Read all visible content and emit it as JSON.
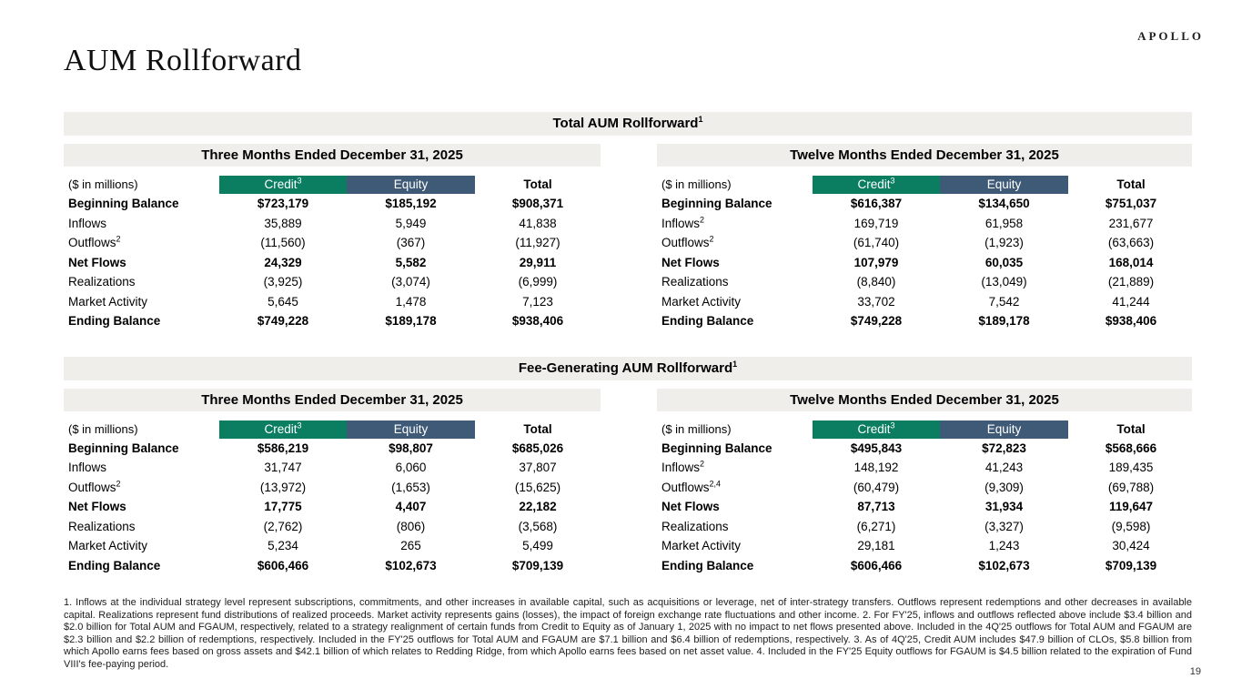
{
  "page": {
    "logo": "APOLLO",
    "title": "AUM Rollforward",
    "page_number": "19"
  },
  "colors": {
    "credit_header": "#0B7E62",
    "equity_header": "#3E5A77",
    "band_bg": "#EFEEEB"
  },
  "sections": [
    {
      "title": "Total AUM Rollforward",
      "title_sup": "1",
      "tables": [
        {
          "period": "Three Months Ended December 31, 2025",
          "unit_label": "($ in millions)",
          "columns": [
            {
              "label": "Credit",
              "sup": "3"
            },
            {
              "label": "Equity",
              "sup": ""
            },
            {
              "label": "Total",
              "sup": ""
            }
          ],
          "rows": [
            {
              "label": "Beginning Balance",
              "sup": "",
              "bold": true,
              "values": [
                "$723,179",
                "$185,192",
                "$908,371"
              ]
            },
            {
              "label": "Inflows",
              "sup": "",
              "bold": false,
              "values": [
                "35,889",
                "5,949",
                "41,838"
              ]
            },
            {
              "label": "Outflows",
              "sup": "2",
              "bold": false,
              "values": [
                "(11,560)",
                "(367)",
                "(11,927)"
              ]
            },
            {
              "label": "Net Flows",
              "sup": "",
              "bold": true,
              "values": [
                "24,329",
                "5,582",
                "29,911"
              ]
            },
            {
              "label": "Realizations",
              "sup": "",
              "bold": false,
              "values": [
                "(3,925)",
                "(3,074)",
                "(6,999)"
              ]
            },
            {
              "label": "Market Activity",
              "sup": "",
              "bold": false,
              "values": [
                "5,645",
                "1,478",
                "7,123"
              ]
            },
            {
              "label": "Ending Balance",
              "sup": "",
              "bold": true,
              "values": [
                "$749,228",
                "$189,178",
                "$938,406"
              ]
            }
          ]
        },
        {
          "period": "Twelve Months Ended December 31, 2025",
          "unit_label": "($ in millions)",
          "columns": [
            {
              "label": "Credit",
              "sup": "3"
            },
            {
              "label": "Equity",
              "sup": ""
            },
            {
              "label": "Total",
              "sup": ""
            }
          ],
          "rows": [
            {
              "label": "Beginning Balance",
              "sup": "",
              "bold": true,
              "values": [
                "$616,387",
                "$134,650",
                "$751,037"
              ]
            },
            {
              "label": "Inflows",
              "sup": "2",
              "bold": false,
              "values": [
                "169,719",
                "61,958",
                "231,677"
              ]
            },
            {
              "label": "Outflows",
              "sup": "2",
              "bold": false,
              "values": [
                "(61,740)",
                "(1,923)",
                "(63,663)"
              ]
            },
            {
              "label": "Net Flows",
              "sup": "",
              "bold": true,
              "values": [
                "107,979",
                "60,035",
                "168,014"
              ]
            },
            {
              "label": "Realizations",
              "sup": "",
              "bold": false,
              "values": [
                "(8,840)",
                "(13,049)",
                "(21,889)"
              ]
            },
            {
              "label": "Market Activity",
              "sup": "",
              "bold": false,
              "values": [
                "33,702",
                "7,542",
                "41,244"
              ]
            },
            {
              "label": "Ending Balance",
              "sup": "",
              "bold": true,
              "values": [
                "$749,228",
                "$189,178",
                "$938,406"
              ]
            }
          ]
        }
      ]
    },
    {
      "title": "Fee-Generating AUM Rollforward",
      "title_sup": "1",
      "tables": [
        {
          "period": "Three Months Ended December 31, 2025",
          "unit_label": "($ in millions)",
          "columns": [
            {
              "label": "Credit",
              "sup": "3"
            },
            {
              "label": "Equity",
              "sup": ""
            },
            {
              "label": "Total",
              "sup": ""
            }
          ],
          "rows": [
            {
              "label": "Beginning Balance",
              "sup": "",
              "bold": true,
              "values": [
                "$586,219",
                "$98,807",
                "$685,026"
              ]
            },
            {
              "label": "Inflows",
              "sup": "",
              "bold": false,
              "values": [
                "31,747",
                "6,060",
                "37,807"
              ]
            },
            {
              "label": "Outflows",
              "sup": "2",
              "bold": false,
              "values": [
                "(13,972)",
                "(1,653)",
                "(15,625)"
              ]
            },
            {
              "label": "Net Flows",
              "sup": "",
              "bold": true,
              "values": [
                "17,775",
                "4,407",
                "22,182"
              ]
            },
            {
              "label": "Realizations",
              "sup": "",
              "bold": false,
              "values": [
                "(2,762)",
                "(806)",
                "(3,568)"
              ]
            },
            {
              "label": "Market Activity",
              "sup": "",
              "bold": false,
              "values": [
                "5,234",
                "265",
                "5,499"
              ]
            },
            {
              "label": "Ending Balance",
              "sup": "",
              "bold": true,
              "values": [
                "$606,466",
                "$102,673",
                "$709,139"
              ]
            }
          ]
        },
        {
          "period": "Twelve Months Ended December 31, 2025",
          "unit_label": "($ in millions)",
          "columns": [
            {
              "label": "Credit",
              "sup": "3"
            },
            {
              "label": "Equity",
              "sup": ""
            },
            {
              "label": "Total",
              "sup": ""
            }
          ],
          "rows": [
            {
              "label": "Beginning Balance",
              "sup": "",
              "bold": true,
              "values": [
                "$495,843",
                "$72,823",
                "$568,666"
              ]
            },
            {
              "label": "Inflows",
              "sup": "2",
              "bold": false,
              "values": [
                "148,192",
                "41,243",
                "189,435"
              ]
            },
            {
              "label": "Outflows",
              "sup": "2,4",
              "bold": false,
              "values": [
                "(60,479)",
                "(9,309)",
                "(69,788)"
              ]
            },
            {
              "label": "Net Flows",
              "sup": "",
              "bold": true,
              "values": [
                "87,713",
                "31,934",
                "119,647"
              ]
            },
            {
              "label": "Realizations",
              "sup": "",
              "bold": false,
              "values": [
                "(6,271)",
                "(3,327)",
                "(9,598)"
              ]
            },
            {
              "label": "Market Activity",
              "sup": "",
              "bold": false,
              "values": [
                "29,181",
                "1,243",
                "30,424"
              ]
            },
            {
              "label": "Ending Balance",
              "sup": "",
              "bold": true,
              "values": [
                "$606,466",
                "$102,673",
                "$709,139"
              ]
            }
          ]
        }
      ]
    }
  ],
  "footnotes": "1. Inflows at the individual strategy level represent subscriptions, commitments, and other increases in available capital, such as acquisitions or leverage, net of inter-strategy transfers. Outflows represent redemptions and other decreases in available capital. Realizations represent fund distributions of realized proceeds. Market activity represents gains (losses), the impact of foreign exchange rate fluctuations and other income. 2. For FY'25, inflows and outflows reflected above include $3.4 billion and $2.0 billion for Total AUM and FGAUM, respectively, related to a strategy realignment of certain funds from Credit to Equity as of January 1, 2025 with no impact to net flows presented above. Included in the 4Q'25 outflows for Total AUM and FGAUM are $2.3 billion and $2.2 billion of redemptions, respectively. Included in the FY'25 outflows for Total AUM and FGAUM are $7.1 billion and $6.4 billion of redemptions, respectively. 3. As of 4Q'25, Credit AUM includes $47.9 billion of CLOs, $5.8 billion from which Apollo earns fees based on gross assets and $42.1 billion of which relates to Redding Ridge, from which Apollo earns fees based on net asset value. 4. Included in the FY'25 Equity outflows for FGAUM is $4.5 billion related to the expiration of Fund VIII's fee-paying period."
}
